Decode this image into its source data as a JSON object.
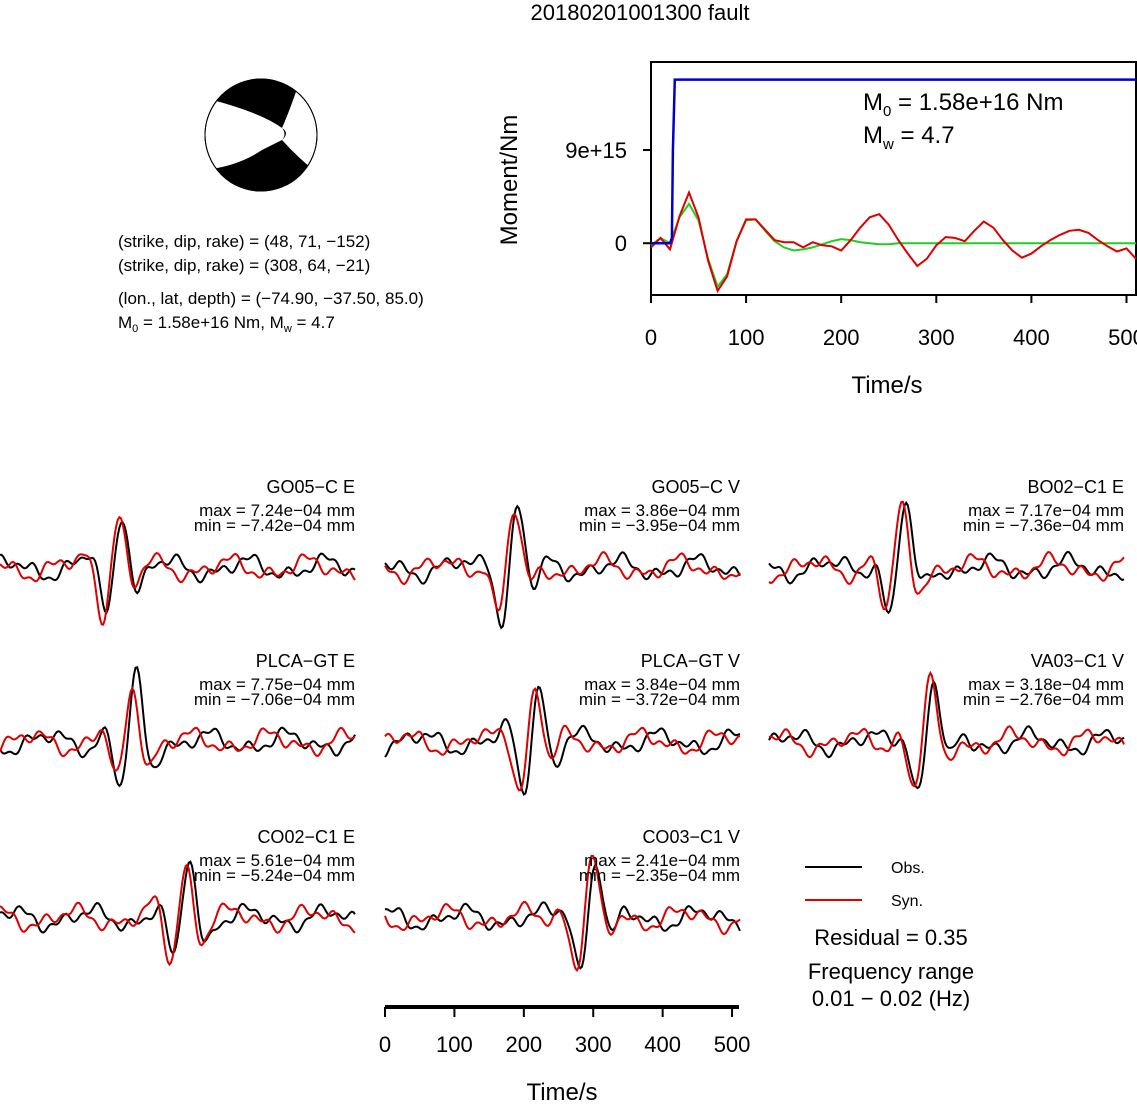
{
  "title": "20180201001300 fault",
  "beachball": {
    "lines": [
      "(strike, dip, rake) = (48, 71, −152)",
      "(strike, dip, rake) = (308, 64, −21)",
      "(lon., lat, depth) = (−74.90, −37.50, 85.0)"
    ],
    "m0_prefix": "M",
    "m0_sub": "0",
    "m0_rest": " = 1.58e+16 Nm, M",
    "mw_sub": "w",
    "mw_rest": " = 4.7"
  },
  "stf": {
    "ylabel": "Moment/Nm",
    "xlabel": "Time/s",
    "m0_label": {
      "pre": "M",
      "sub": "0",
      "post": " = 1.58e+16 Nm"
    },
    "mw_label": {
      "pre": "M",
      "sub": "w",
      "post": " = 4.7"
    },
    "yticks": [
      "0",
      "9e+15"
    ],
    "xticks": [
      "0",
      "100",
      "200",
      "300",
      "400",
      "500"
    ]
  },
  "chart_data": [
    {
      "type": "line",
      "name": "moment-rate-function",
      "x": [
        0,
        10,
        20,
        22,
        23,
        25,
        510
      ],
      "series": [
        {
          "name": "",
          "color": "#0000cc",
          "values": [
            0,
            0,
            0,
            500000000000000.0,
            9000000000000000.0,
            1.58e+16,
            1.58e+16
          ]
        }
      ],
      "xlim": [
        0,
        510
      ],
      "ylim": [
        -5000000000000000.0,
        1.75e+16
      ],
      "y_ticks": [
        0,
        9000000000000000.0
      ],
      "x_ticks": [
        0,
        100,
        200,
        300,
        400,
        500
      ],
      "overlay": {
        "green_x": [
          0,
          10,
          20,
          30,
          40,
          50,
          60,
          70,
          80,
          90,
          100,
          110,
          120,
          130,
          140,
          150,
          160,
          170,
          180,
          190,
          200,
          210,
          220,
          230,
          240,
          250,
          260,
          280,
          300,
          350,
          400,
          450,
          500,
          510
        ],
        "green_y": [
          -0.2,
          0.5,
          0,
          2.5,
          3.8,
          2.2,
          -1.5,
          -4.2,
          -3.0,
          0.2,
          2.2,
          2.3,
          1.2,
          0.2,
          -0.4,
          -0.7,
          -0.6,
          -0.4,
          -0.1,
          0.2,
          0.4,
          0.3,
          0.1,
          0,
          -0.1,
          -0.1,
          0,
          0,
          0,
          0,
          0,
          0,
          0,
          0
        ],
        "red_x": [
          0,
          10,
          20,
          30,
          40,
          50,
          60,
          70,
          80,
          90,
          100,
          110,
          120,
          130,
          140,
          150,
          160,
          170,
          180,
          190,
          200,
          210,
          220,
          230,
          240,
          250,
          260,
          270,
          280,
          290,
          300,
          310,
          320,
          330,
          340,
          350,
          360,
          370,
          380,
          390,
          400,
          410,
          420,
          430,
          440,
          450,
          460,
          470,
          480,
          490,
          500,
          510
        ],
        "red_y": [
          -0.4,
          0.5,
          -0.6,
          2.6,
          4.9,
          2.5,
          -1.7,
          -4.6,
          -3.2,
          0.2,
          2.3,
          2.3,
          1.3,
          0.3,
          0.1,
          0.1,
          -0.4,
          0.1,
          -0.2,
          -0.3,
          -0.7,
          0.3,
          1.5,
          2.5,
          2.8,
          1.8,
          0.3,
          -1.0,
          -2.2,
          -1.5,
          -0.2,
          0.6,
          0.5,
          0.2,
          1.2,
          2.1,
          1.5,
          0.3,
          -0.7,
          -1.4,
          -1.0,
          -0.3,
          0.3,
          0.8,
          1.2,
          1.3,
          1.0,
          0.3,
          -0.3,
          -0.8,
          -0.5,
          -1.5
        ]
      }
    }
  ],
  "waveforms": [
    {
      "station": "GO05−C E",
      "max": "max = 7.24e−04 mm",
      "min": "min = −7.42e−04 mm"
    },
    {
      "station": "GO05−C V",
      "max": "max = 3.86e−04 mm",
      "min": "min = −3.95e−04 mm"
    },
    {
      "station": "BO02−C1 E",
      "max": "max = 7.17e−04 mm",
      "min": "min = −7.36e−04 mm"
    },
    {
      "station": "PLCA−GT E",
      "max": "max = 7.75e−04 mm",
      "min": "min = −7.06e−04 mm"
    },
    {
      "station": "PLCA−GT V",
      "max": "max = 3.84e−04 mm",
      "min": "min = −3.72e−04 mm"
    },
    {
      "station": "VA03−C1 V",
      "max": "max = 3.18e−04 mm",
      "min": "min = −2.76e−04 mm"
    },
    {
      "station": "CO02−C1 E",
      "max": "max = 5.61e−04 mm",
      "min": "min = −5.24e−04 mm"
    },
    {
      "station": "CO03−C1 V",
      "max": "max = 2.41e−04 mm",
      "min": "min = −2.35e−04 mm"
    }
  ],
  "waveform_axis": {
    "xlabel": "Time/s",
    "xticks": [
      "0",
      "100",
      "200",
      "300",
      "400",
      "500"
    ]
  },
  "legend": {
    "obs": "Obs.",
    "syn": "Syn."
  },
  "residual": "Residual = 0.35",
  "freq_title": "Frequency range",
  "freq_value": "0.01 − 0.02 (Hz)",
  "colors": {
    "obs": "#000000",
    "syn": "#dd0000",
    "stf": "#0000cc",
    "green": "#22cc22"
  }
}
